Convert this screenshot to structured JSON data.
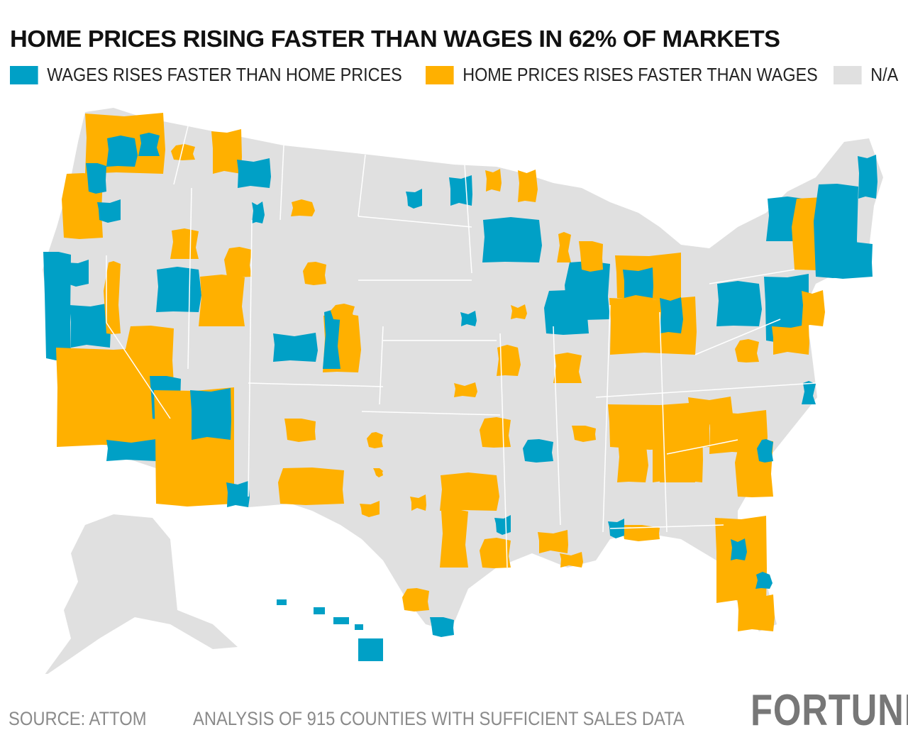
{
  "title": "HOME PRICES RISING FASTER THAN WAGES IN 62% OF MARKETS",
  "legend": [
    {
      "label": "WAGES RISES FASTER THAN HOME PRICES",
      "color": "#00a0c6"
    },
    {
      "label": "HOME PRICES RISES FASTER THAN WAGES",
      "color": "#ffb000"
    },
    {
      "label": "N/A",
      "color": "#e0e0e0"
    }
  ],
  "footer": {
    "source": "SOURCE: ATTOM",
    "note": "ANALYSIS OF 915 COUNTIES WITH SUFFICIENT SALES DATA",
    "logo": "FORTUNE"
  }
}
